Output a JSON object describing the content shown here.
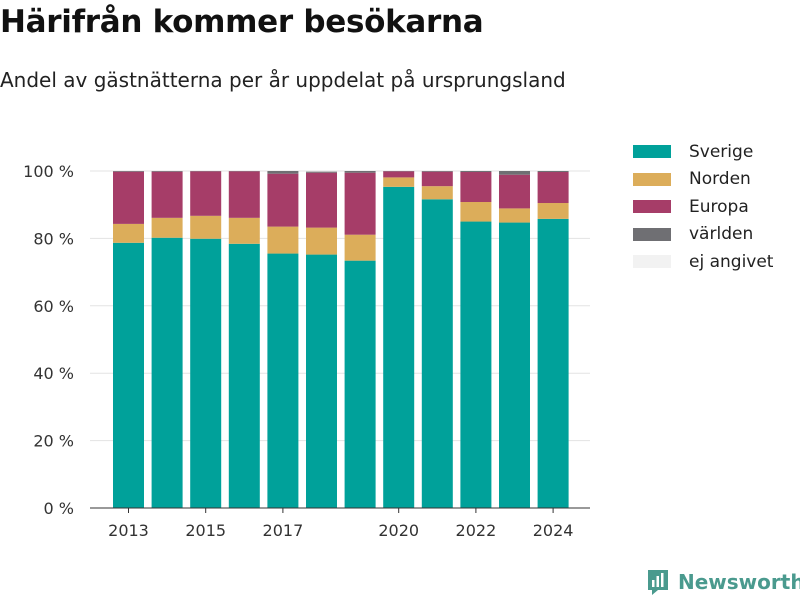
{
  "title": "Härifrån kommer besökarna",
  "subtitle": "Andel av gästnätterna per år uppdelat på ursprungsland",
  "brand": "Newsworthy",
  "brand_icon": "newsworthy-chart-logo-icon",
  "colors": {
    "Sverige": "#00a19a",
    "Norden": "#dcad5a",
    "Europa": "#a63d68",
    "världen": "#6f6f73",
    "ej angivet": "#f2f2f2"
  },
  "chart_data": {
    "type": "bar",
    "stacked": true,
    "categories": [
      "2013",
      "2014",
      "2015",
      "2016",
      "2017",
      "2018",
      "2019",
      "2020",
      "2021",
      "2022",
      "2023",
      "2024"
    ],
    "x_tick_labels": [
      "2013",
      "2015",
      "2017",
      "2020",
      "2022",
      "2024"
    ],
    "y_tick_labels": [
      "0 %",
      "20 %",
      "40 %",
      "60 %",
      "80 %",
      "100 %"
    ],
    "ylim": [
      0,
      100
    ],
    "grid": true,
    "legend_position": "right",
    "series": [
      {
        "name": "Sverige",
        "values": [
          78.7,
          80.2,
          79.9,
          78.4,
          75.5,
          75.2,
          73.4,
          95.3,
          91.6,
          85.0,
          84.7,
          85.8
        ]
      },
      {
        "name": "Norden",
        "values": [
          5.6,
          5.9,
          6.8,
          7.7,
          8.0,
          8.0,
          7.7,
          2.8,
          3.9,
          5.8,
          4.2,
          4.7
        ]
      },
      {
        "name": "Europa",
        "values": [
          15.5,
          13.7,
          13.2,
          13.8,
          15.7,
          16.3,
          18.4,
          1.8,
          4.3,
          8.9,
          10.0,
          9.2
        ]
      },
      {
        "name": "världen",
        "values": [
          0.2,
          0.2,
          0.1,
          0.1,
          0.8,
          0.3,
          0.5,
          0.1,
          0.2,
          0.3,
          1.1,
          0.3
        ]
      },
      {
        "name": "ej angivet",
        "values": [
          0,
          0,
          0,
          0,
          0,
          0,
          0,
          0,
          0,
          0,
          0,
          0
        ]
      }
    ]
  }
}
